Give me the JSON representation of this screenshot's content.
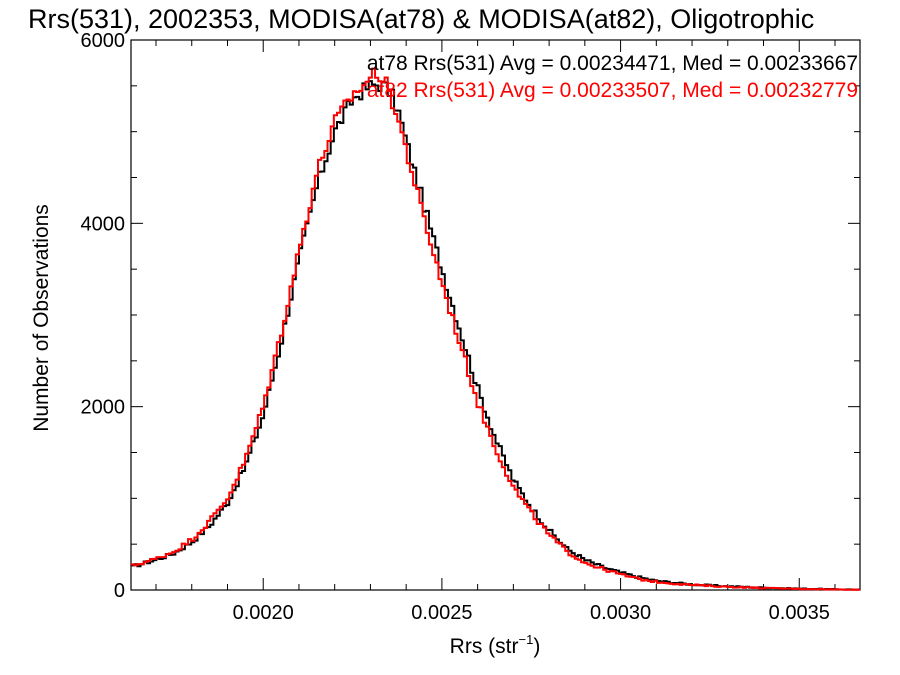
{
  "chart_data": {
    "type": "line",
    "title": "Rrs(531), 2002353, MODISA(at78) & MODISA(at82), Oligotrophic",
    "xlabel": "Rrs (str",
    "xlabel_superscript": "−1",
    "xlabel_close": ")",
    "ylabel": "Number of Observations",
    "xlim": [
      0.00163,
      0.00367
    ],
    "ylim": [
      0,
      6000
    ],
    "xticks": [
      0.002,
      0.0025,
      0.003,
      0.0035
    ],
    "xtick_labels": [
      "0.0020",
      "0.0025",
      "0.0030",
      "0.0035"
    ],
    "yticks": [
      0,
      2000,
      4000,
      6000
    ],
    "ytick_labels": [
      "0",
      "2000",
      "4000",
      "6000"
    ],
    "grid": false,
    "legend_position": "top-right",
    "series": [
      {
        "name": "at78 Rrs(531) Avg = 0.00234471, Med = 0.00233667",
        "color": "#000000",
        "x": [
          0.00163,
          0.0017,
          0.00175,
          0.0018,
          0.00185,
          0.0019,
          0.00195,
          0.002,
          0.00205,
          0.0021,
          0.00215,
          0.0022,
          0.00225,
          0.00228,
          0.0023,
          0.00232,
          0.00234,
          0.00236,
          0.00238,
          0.0024,
          0.00245,
          0.0025,
          0.00255,
          0.0026,
          0.00265,
          0.0027,
          0.00275,
          0.0028,
          0.00285,
          0.0029,
          0.00295,
          0.003,
          0.00305,
          0.0031,
          0.00315,
          0.0032,
          0.0033,
          0.0034,
          0.0035,
          0.0036,
          0.00367
        ],
        "y": [
          250,
          330,
          400,
          520,
          700,
          950,
          1350,
          1900,
          2700,
          3600,
          4400,
          5000,
          5350,
          5450,
          5500,
          5520,
          5500,
          5400,
          5200,
          4900,
          4200,
          3500,
          2850,
          2200,
          1650,
          1200,
          900,
          650,
          450,
          330,
          250,
          190,
          140,
          100,
          80,
          60,
          40,
          25,
          15,
          8,
          5
        ]
      },
      {
        "name": "at82 Rrs(531) Avg = 0.00233507, Med = 0.00232779",
        "color": "#ff0000",
        "x": [
          0.00163,
          0.0017,
          0.00175,
          0.0018,
          0.00185,
          0.0019,
          0.00195,
          0.002,
          0.00205,
          0.0021,
          0.00215,
          0.0022,
          0.00225,
          0.00228,
          0.0023,
          0.00232,
          0.00234,
          0.00236,
          0.00238,
          0.0024,
          0.00245,
          0.0025,
          0.00255,
          0.0026,
          0.00265,
          0.0027,
          0.00275,
          0.0028,
          0.00285,
          0.0029,
          0.00295,
          0.003,
          0.00305,
          0.0031,
          0.00315,
          0.0032,
          0.0033,
          0.0034,
          0.0035,
          0.0036,
          0.00367
        ],
        "y": [
          260,
          340,
          420,
          550,
          750,
          1000,
          1420,
          2000,
          2800,
          3700,
          4550,
          5100,
          5400,
          5500,
          5600,
          5650,
          5550,
          5350,
          5100,
          4800,
          4050,
          3350,
          2700,
          2050,
          1550,
          1120,
          840,
          600,
          420,
          300,
          230,
          170,
          120,
          90,
          70,
          55,
          35,
          22,
          12,
          6,
          4
        ]
      }
    ]
  }
}
